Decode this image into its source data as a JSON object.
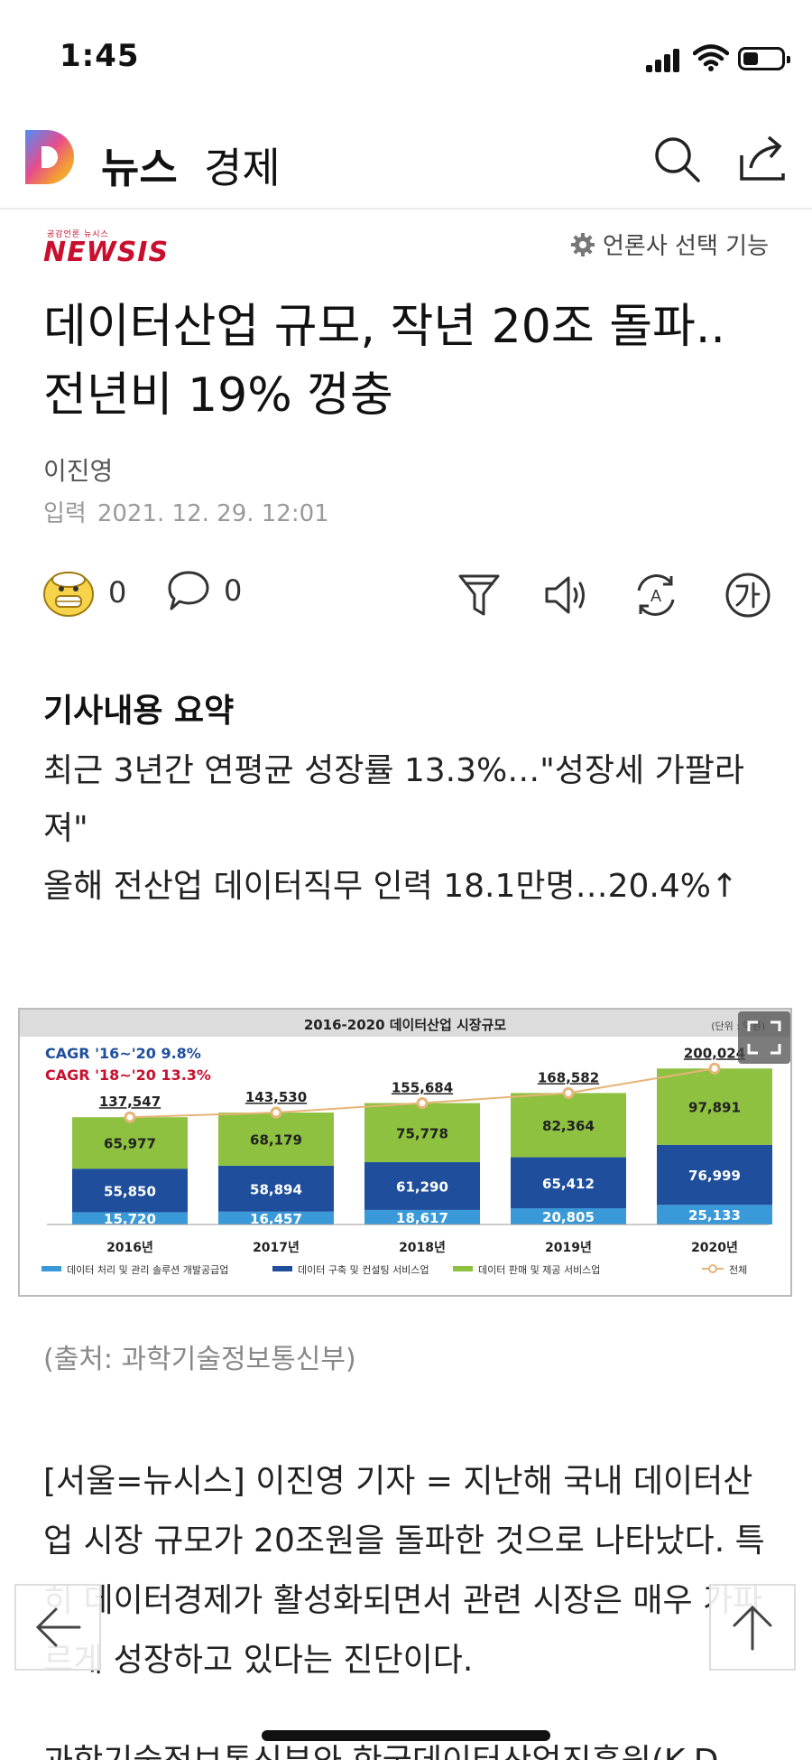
{
  "status": {
    "time": "1:45"
  },
  "header": {
    "app": "뉴스",
    "section": "경제"
  },
  "press": {
    "small": "공감언론 뉴시스",
    "name": "NEWSIS",
    "select_label": "언론사 선택 기능"
  },
  "article": {
    "title": "데이터산업 규모, 작년 20조 돌파.. 전년비 19% 껑충",
    "author": "이진영",
    "date_label": "입력",
    "date": "2021. 12. 29. 12:01",
    "reaction_count": "0",
    "comment_count": "0",
    "summary_heading": "기사내용 요약",
    "summary_1": "최근 3년간 연평균 성장률 13.3%…\"성장세 가팔라져\"",
    "summary_2": "올해 전산업 데이터직무 인력 18.1만명…20.4%↑",
    "caption": "(출처: 과학기술정보통신부)",
    "body_1": "[서울=뉴시스] 이진영 기자 = 지난해 국내 데이터산업 시장 규모가 20조원을 돌파한 것으로 나타났다. 특히 데이터경제가 활성화되면서 관련 시장은 매우 가파르게 성장하고 있다는 진단이다.",
    "body_2": "과학기술정보통신부와 한국데이터산업진흥원(K-D"
  },
  "chart_data": {
    "type": "bar",
    "title": "2016-2020 데이터산업 시장규모",
    "unit": "(단위 : 억원)",
    "cagr_1": "CAGR '16~'20  9.8%",
    "cagr_2": "CAGR '18~'20  13.3%",
    "categories": [
      "2016년",
      "2017년",
      "2018년",
      "2019년",
      "2020년"
    ],
    "series": [
      {
        "name": "데이터 처리 및 관리 솔루션 개발공급업",
        "values": [
          15720,
          16457,
          18617,
          20805,
          25133
        ],
        "color": "#3a9ad9"
      },
      {
        "name": "데이터 구축 및 컨설팅 서비스업",
        "values": [
          55850,
          58894,
          61290,
          65412,
          76999
        ],
        "color": "#1f4e9c"
      },
      {
        "name": "데이터 판매 및 제공 서비스업",
        "values": [
          65977,
          68179,
          75778,
          82364,
          97891
        ],
        "color": "#8dc13f"
      }
    ],
    "totals": {
      "name": "전체",
      "values": [
        137547,
        143530,
        155684,
        168582,
        200024
      ],
      "color": "#e7b477"
    },
    "labels": {
      "s0": [
        "15,720",
        "16,457",
        "18,617",
        "20,805",
        "25,133"
      ],
      "s1": [
        "55,850",
        "58,894",
        "61,290",
        "65,412",
        "76,999"
      ],
      "s2": [
        "65,977",
        "68,179",
        "75,778",
        "82,364",
        "97,891"
      ],
      "total": [
        "137,547",
        "143,530",
        "155,684",
        "168,582",
        "200,024"
      ]
    },
    "ylim": [
      0,
      220000
    ]
  }
}
